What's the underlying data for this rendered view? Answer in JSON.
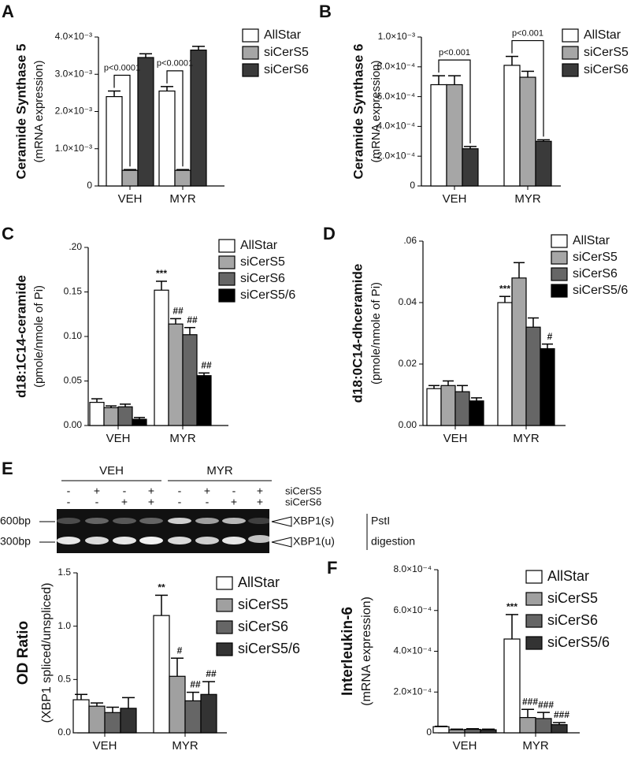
{
  "chart_data": [
    {
      "type": "bar",
      "panel": "A",
      "ylabel": "Ceramide Synthase 5",
      "ylabel_sub": "(mRNA expression)",
      "categories": [
        "VEH",
        "MYR"
      ],
      "series": [
        {
          "name": "AllStar",
          "color": "#ffffff",
          "values": [
            0.0024,
            0.00255
          ],
          "errors": [
            0.00015,
            0.00012
          ]
        },
        {
          "name": "siCerS5",
          "color": "#a6a6a6",
          "values": [
            0.00042,
            0.00042
          ],
          "errors": [
            2e-05,
            2e-05
          ]
        },
        {
          "name": "siCerS6",
          "color": "#3a3a3a",
          "values": [
            0.00345,
            0.00365
          ],
          "errors": [
            0.0001,
            0.0001
          ]
        }
      ],
      "comparison": {
        "between": [
          "AllStar",
          "siCerS5"
        ],
        "labels": [
          "p<0.0001",
          "p<0.0001"
        ]
      },
      "ylim": [
        0,
        0.004
      ],
      "yticks": [
        0,
        {
          "value": 0.001,
          "label": "1.0×10⁻³"
        },
        {
          "value": 0.002,
          "label": "2.0×10⁻³"
        },
        {
          "value": 0.003,
          "label": "3.0×10⁻³"
        },
        {
          "value": 0.004,
          "label": "4.0×10⁻³"
        }
      ]
    },
    {
      "type": "bar",
      "panel": "B",
      "ylabel": "Ceramide Synthase 6",
      "ylabel_sub": "(mRNA expression)",
      "categories": [
        "VEH",
        "MYR"
      ],
      "series": [
        {
          "name": "AllStar",
          "color": "#ffffff",
          "values": [
            0.00068,
            0.00081
          ],
          "errors": [
            6e-05,
            6e-05
          ]
        },
        {
          "name": "siCerS5",
          "color": "#a6a6a6",
          "values": [
            0.00068,
            0.00073
          ],
          "errors": [
            6e-05,
            4e-05
          ]
        },
        {
          "name": "siCerS6",
          "color": "#3a3a3a",
          "values": [
            0.00025,
            0.0003
          ],
          "errors": [
            1.5e-05,
            1e-05
          ]
        }
      ],
      "comparison": {
        "between": [
          "AllStar",
          "siCerS6"
        ],
        "labels": [
          "p<0.001",
          "p<0.001"
        ]
      },
      "ylim": [
        0,
        0.001
      ],
      "yticks": [
        0,
        {
          "value": 0.0002,
          "label": "2.0×10⁻⁴"
        },
        {
          "value": 0.0004,
          "label": "4.0×10⁻⁴"
        },
        {
          "value": 0.0006,
          "label": "6.0×10⁻⁴"
        },
        {
          "value": 0.0008,
          "label": "8.0×10⁻⁴"
        },
        {
          "value": 0.001,
          "label": "1.0×10⁻³"
        }
      ]
    },
    {
      "type": "bar",
      "panel": "C",
      "ylabel": "d18:1C14-ceramide",
      "ylabel_sub": "(pmole/nmole of Pi)",
      "categories": [
        "VEH",
        "MYR"
      ],
      "series": [
        {
          "name": "AllStar",
          "color": "#ffffff",
          "values": [
            0.026,
            0.152
          ],
          "errors": [
            0.004,
            0.01
          ],
          "value_annotations": [
            null,
            "***"
          ]
        },
        {
          "name": "siCerS5",
          "color": "#a6a6a6",
          "values": [
            0.02,
            0.114
          ],
          "errors": [
            0.002,
            0.006
          ],
          "value_annotations": [
            null,
            "##"
          ]
        },
        {
          "name": "siCerS6",
          "color": "#666666",
          "values": [
            0.021,
            0.102
          ],
          "errors": [
            0.003,
            0.008
          ],
          "value_annotations": [
            null,
            "##"
          ]
        },
        {
          "name": "siCerS5/6",
          "color": "#000000",
          "values": [
            0.007,
            0.056
          ],
          "errors": [
            0.002,
            0.003
          ],
          "value_annotations": [
            null,
            "##"
          ]
        }
      ],
      "ylim": [
        0,
        0.2
      ],
      "yticks": [
        {
          "value": 0,
          "label": "0.00"
        },
        0.05,
        {
          "value": 0.1,
          "label": "0.10"
        },
        0.15,
        {
          "value": 0.2,
          "label": ".20"
        }
      ]
    },
    {
      "type": "bar",
      "panel": "D",
      "ylabel": "d18:0C14-dhceramide",
      "ylabel_sub": "(pmole/nmole of Pi)",
      "categories": [
        "VEH",
        "MYR"
      ],
      "series": [
        {
          "name": "AllStar",
          "color": "#ffffff",
          "values": [
            0.012,
            0.04
          ],
          "errors": [
            0.001,
            0.002
          ],
          "value_annotations": [
            null,
            "***"
          ]
        },
        {
          "name": "siCerS5",
          "color": "#a6a6a6",
          "values": [
            0.013,
            0.048
          ],
          "errors": [
            0.0015,
            0.005
          ],
          "value_annotations": [
            null,
            null
          ]
        },
        {
          "name": "siCerS6",
          "color": "#666666",
          "values": [
            0.011,
            0.032
          ],
          "errors": [
            0.002,
            0.003
          ],
          "value_annotations": [
            null,
            null
          ]
        },
        {
          "name": "siCerS5/6",
          "color": "#000000",
          "values": [
            0.008,
            0.025
          ],
          "errors": [
            0.001,
            0.0015
          ],
          "value_annotations": [
            null,
            "#"
          ]
        }
      ],
      "ylim": [
        0,
        0.06
      ],
      "yticks": [
        {
          "value": 0,
          "label": "0.00"
        },
        0.02,
        0.04,
        {
          "value": 0.06,
          "label": ".06"
        }
      ]
    },
    {
      "type": "bar",
      "ylabel": "OD Ratio",
      "ylabel_sub": "(XBP1 spliced/unspliced)",
      "categories": [
        "VEH",
        "MYR"
      ],
      "series": [
        {
          "name": "AllStar",
          "color": "#ffffff",
          "values": [
            0.31,
            1.1
          ],
          "errors": [
            0.05,
            0.19
          ],
          "value_annotations": [
            null,
            "**"
          ]
        },
        {
          "name": "siCerS5",
          "color": "#a0a0a0",
          "values": [
            0.25,
            0.53
          ],
          "errors": [
            0.03,
            0.17
          ],
          "value_annotations": [
            null,
            "#"
          ]
        },
        {
          "name": "siCerS6",
          "color": "#666666",
          "values": [
            0.19,
            0.3
          ],
          "errors": [
            0.05,
            0.08
          ],
          "value_annotations": [
            null,
            "##"
          ]
        },
        {
          "name": "siCerS5/6",
          "color": "#333333",
          "values": [
            0.23,
            0.36
          ],
          "errors": [
            0.1,
            0.12
          ],
          "value_annotations": [
            null,
            "##"
          ]
        }
      ],
      "ylim": [
        0,
        1.5
      ],
      "yticks": [
        {
          "value": 0,
          "label": "0.0"
        },
        0.5,
        {
          "value": 1,
          "label": "1.0"
        },
        1.5
      ]
    },
    {
      "type": "bar",
      "panel": "F",
      "ylabel": "Interleukin-6",
      "ylabel_sub": "(mRNA expression)",
      "categories": [
        "VEH",
        "MYR"
      ],
      "series": [
        {
          "name": "AllStar",
          "color": "#ffffff",
          "values": [
            3e-05,
            0.00046
          ],
          "errors": [
            2e-06,
            0.00012
          ],
          "value_annotations": [
            null,
            "***"
          ]
        },
        {
          "name": "siCerS5",
          "color": "#a0a0a0",
          "values": [
            1.5e-05,
            7.5e-05
          ],
          "errors": [
            3e-06,
            4e-05
          ],
          "value_annotations": [
            null,
            "###"
          ]
        },
        {
          "name": "siCerS6",
          "color": "#666666",
          "values": [
            1.7e-05,
            7e-05
          ],
          "errors": [
            3e-06,
            3e-05
          ],
          "value_annotations": [
            null,
            "###"
          ]
        },
        {
          "name": "siCerS5/6",
          "color": "#333333",
          "values": [
            1.5e-05,
            4e-05
          ],
          "errors": [
            3e-06,
            1e-05
          ],
          "value_annotations": [
            null,
            "###"
          ]
        }
      ],
      "ylim": [
        0,
        0.0008
      ],
      "yticks": [
        0,
        {
          "value": 0.0002,
          "label": "2.0×10⁻⁴"
        },
        {
          "value": 0.0004,
          "label": "4.0×10⁻⁴"
        },
        {
          "value": 0.0006,
          "label": "6.0×10⁻⁴"
        },
        {
          "value": 0.0008,
          "label": "8.0×10⁻⁴"
        }
      ]
    }
  ],
  "gel": {
    "panel": "E",
    "groups": [
      "VEH",
      "MYR"
    ],
    "rows": [
      {
        "name": "siCerS5",
        "signs": [
          "-",
          "+",
          "-",
          "+",
          "-",
          "+",
          "-",
          "+"
        ]
      },
      {
        "name": "siCerS6",
        "signs": [
          "-",
          "-",
          "+",
          "+",
          "-",
          "-",
          "+",
          "+"
        ]
      }
    ],
    "sizes": [
      "600bp",
      "300bp"
    ],
    "bands": [
      "XBP1(s)",
      "XBP1(u)"
    ],
    "note": [
      "PstI",
      "digestion"
    ]
  }
}
